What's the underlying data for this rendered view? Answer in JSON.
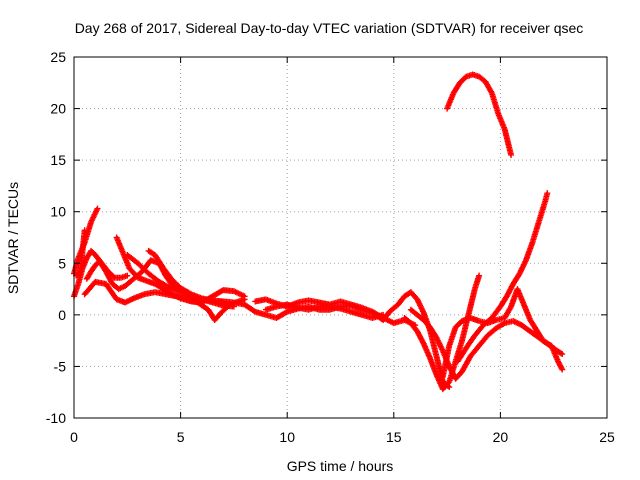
{
  "chart_data": {
    "type": "scatter",
    "title": "Day 268 of 2017, Sidereal Day-to-day VTEC variation (SDTVAR) for receiver qsec",
    "xlabel": "GPS time / hours",
    "ylabel": "SDTVAR / TECUs",
    "xlim": [
      0,
      25
    ],
    "ylim": [
      -10,
      25
    ],
    "xticks": [
      0,
      5,
      10,
      15,
      20,
      25
    ],
    "yticks": [
      -10,
      -5,
      0,
      5,
      10,
      15,
      20,
      25
    ],
    "grid": true,
    "legend": "none",
    "marker": "plus",
    "color": "#ff0000",
    "series": [
      {
        "values": [
          [
            0.0,
            1.8
          ],
          [
            0.2,
            3.0
          ],
          [
            0.4,
            4.5
          ],
          [
            0.6,
            5.5
          ],
          [
            0.8,
            6.2
          ],
          [
            1.0,
            5.8
          ],
          [
            1.3,
            5.0
          ],
          [
            1.6,
            4.2
          ],
          [
            1.9,
            3.6
          ],
          [
            2.2,
            3.6
          ],
          [
            2.5,
            3.8
          ]
        ]
      },
      {
        "values": [
          [
            0.0,
            4.0
          ],
          [
            0.2,
            5.5
          ],
          [
            0.5,
            7.0
          ],
          [
            0.8,
            9.0
          ],
          [
            1.1,
            10.3
          ]
        ]
      },
      {
        "values": [
          [
            0.1,
            3.8
          ],
          [
            0.3,
            4.2
          ],
          [
            0.5,
            8.2
          ]
        ]
      },
      {
        "values": [
          [
            0.6,
            3.5
          ],
          [
            0.8,
            4.2
          ],
          [
            1.0,
            4.8
          ],
          [
            1.2,
            5.2
          ],
          [
            1.5,
            4.2
          ],
          [
            1.8,
            3.0
          ],
          [
            2.1,
            2.5
          ],
          [
            2.4,
            2.8
          ],
          [
            2.8,
            3.5
          ],
          [
            3.2,
            4.2
          ],
          [
            3.6,
            5.3
          ],
          [
            4.0,
            5.0
          ],
          [
            4.3,
            3.8
          ],
          [
            4.6,
            2.9
          ],
          [
            5.0,
            2.3
          ],
          [
            5.5,
            1.8
          ],
          [
            6.0,
            1.5
          ],
          [
            6.5,
            1.3
          ],
          [
            7.0,
            1.2
          ]
        ]
      },
      {
        "values": [
          [
            0.5,
            2.0
          ],
          [
            1.0,
            3.2
          ],
          [
            1.5,
            3.0
          ],
          [
            2.0,
            1.5
          ],
          [
            2.4,
            1.2
          ],
          [
            2.8,
            1.6
          ],
          [
            3.3,
            2.0
          ],
          [
            3.8,
            2.2
          ],
          [
            4.3,
            2.0
          ],
          [
            4.8,
            1.8
          ],
          [
            5.3,
            1.5
          ],
          [
            5.8,
            1.2
          ],
          [
            6.3,
            0.5
          ],
          [
            6.6,
            -0.5
          ],
          [
            6.9,
            0.2
          ],
          [
            7.3,
            1.0
          ],
          [
            8.0,
            1.5
          ]
        ]
      },
      {
        "values": [
          [
            2.0,
            7.5
          ],
          [
            2.3,
            6.0
          ],
          [
            2.6,
            4.5
          ],
          [
            3.0,
            3.6
          ],
          [
            3.4,
            3.3
          ],
          [
            3.8,
            3.0
          ],
          [
            4.2,
            2.5
          ],
          [
            4.6,
            2.0
          ],
          [
            5.0,
            1.6
          ],
          [
            5.5,
            1.3
          ],
          [
            6.0,
            1.2
          ],
          [
            6.5,
            1.8
          ],
          [
            7.0,
            2.4
          ],
          [
            7.5,
            2.3
          ],
          [
            8.0,
            1.8
          ]
        ]
      },
      {
        "values": [
          [
            2.5,
            5.8
          ],
          [
            3.0,
            5.0
          ],
          [
            3.5,
            4.0
          ],
          [
            4.0,
            3.2
          ],
          [
            4.5,
            2.6
          ],
          [
            5.0,
            2.2
          ],
          [
            5.5,
            1.8
          ],
          [
            6.0,
            1.5
          ],
          [
            6.5,
            1.2
          ],
          [
            7.0,
            0.9
          ],
          [
            7.5,
            0.8
          ]
        ]
      },
      {
        "values": [
          [
            3.5,
            6.2
          ],
          [
            3.8,
            5.8
          ],
          [
            4.2,
            4.5
          ],
          [
            4.6,
            3.4
          ],
          [
            5.0,
            2.6
          ],
          [
            5.5,
            2.0
          ],
          [
            6.0,
            1.6
          ],
          [
            6.5,
            1.4
          ],
          [
            7.0,
            1.3
          ],
          [
            7.5,
            1.2
          ],
          [
            8.0,
            1.0
          ]
        ]
      },
      {
        "values": [
          [
            8.0,
            1.0
          ],
          [
            8.5,
            0.3
          ],
          [
            9.0,
            0.0
          ],
          [
            9.5,
            -0.3
          ],
          [
            10.0,
            0.3
          ],
          [
            10.5,
            0.6
          ],
          [
            11.0,
            0.8
          ],
          [
            11.5,
            0.5
          ],
          [
            12.0,
            0.5
          ],
          [
            12.5,
            0.8
          ],
          [
            13.0,
            0.9
          ],
          [
            13.5,
            0.5
          ],
          [
            14.0,
            0.2
          ],
          [
            14.5,
            -0.5
          ],
          [
            14.8,
            0.3
          ],
          [
            15.2,
            1.0
          ],
          [
            15.5,
            1.8
          ],
          [
            15.8,
            2.2
          ],
          [
            16.1,
            1.5
          ],
          [
            16.4,
            0.2
          ],
          [
            16.7,
            -1.5
          ],
          [
            17.0,
            -4.0
          ],
          [
            17.3,
            -6.5
          ],
          [
            17.6,
            -7.0
          ]
        ]
      },
      {
        "values": [
          [
            8.5,
            1.3
          ],
          [
            9.0,
            1.5
          ],
          [
            9.5,
            1.1
          ],
          [
            10.0,
            0.8
          ],
          [
            10.5,
            1.2
          ],
          [
            11.0,
            1.4
          ],
          [
            11.5,
            1.2
          ],
          [
            12.0,
            1.0
          ],
          [
            12.5,
            1.3
          ],
          [
            13.0,
            1.0
          ],
          [
            13.5,
            0.7
          ],
          [
            14.0,
            0.3
          ],
          [
            14.5,
            -0.3
          ],
          [
            15.0,
            -0.8
          ],
          [
            15.5,
            -0.5
          ],
          [
            16.0,
            -1.0
          ]
        ]
      },
      {
        "values": [
          [
            9.0,
            0.5
          ],
          [
            9.5,
            0.8
          ],
          [
            10.0,
            1.0
          ],
          [
            10.5,
            0.7
          ],
          [
            11.0,
            0.5
          ],
          [
            11.5,
            0.8
          ],
          [
            12.0,
            0.8
          ],
          [
            12.5,
            0.6
          ],
          [
            13.0,
            0.3
          ],
          [
            13.5,
            0.0
          ],
          [
            14.0,
            -0.3
          ],
          [
            14.5,
            0.0
          ]
        ]
      },
      {
        "values": [
          [
            15.5,
            -0.3
          ],
          [
            15.8,
            -0.8
          ],
          [
            16.1,
            -1.6
          ],
          [
            16.4,
            -2.8
          ],
          [
            16.7,
            -4.2
          ],
          [
            17.0,
            -5.8
          ],
          [
            17.3,
            -7.2
          ],
          [
            17.6,
            -6.5
          ],
          [
            17.9,
            -4.5
          ],
          [
            18.2,
            -2.5
          ],
          [
            18.5,
            0.0
          ],
          [
            18.8,
            2.5
          ],
          [
            19.0,
            3.8
          ]
        ]
      },
      {
        "values": [
          [
            15.8,
            0.5
          ],
          [
            16.1,
            0.0
          ],
          [
            16.4,
            -0.5
          ],
          [
            16.7,
            -1.2
          ],
          [
            17.0,
            -2.2
          ],
          [
            17.3,
            -3.5
          ],
          [
            17.6,
            -5.0
          ],
          [
            17.9,
            -6.2
          ],
          [
            18.2,
            -5.5
          ],
          [
            18.6,
            -4.0
          ],
          [
            19.0,
            -3.0
          ],
          [
            19.4,
            -2.0
          ],
          [
            19.8,
            -1.3
          ],
          [
            20.2,
            -0.8
          ],
          [
            20.6,
            -0.6
          ],
          [
            21.0,
            -1.0
          ],
          [
            21.4,
            -1.6
          ],
          [
            21.8,
            -2.2
          ],
          [
            22.2,
            -2.8
          ],
          [
            22.6,
            -3.4
          ],
          [
            22.9,
            -3.8
          ]
        ]
      },
      {
        "values": [
          [
            17.3,
            -6.0
          ],
          [
            17.6,
            -3.0
          ],
          [
            17.9,
            -1.2
          ],
          [
            18.2,
            -0.6
          ],
          [
            18.6,
            -0.3
          ],
          [
            19.0,
            -0.6
          ],
          [
            19.4,
            -0.8
          ],
          [
            19.8,
            -0.5
          ],
          [
            20.2,
            -0.3
          ],
          [
            20.5,
            0.8
          ],
          [
            20.8,
            2.5
          ],
          [
            21.0,
            1.5
          ],
          [
            21.2,
            0.5
          ],
          [
            21.4,
            -0.5
          ],
          [
            21.7,
            -1.5
          ],
          [
            22.0,
            -2.5
          ],
          [
            22.4,
            -3.0
          ],
          [
            22.7,
            -4.5
          ],
          [
            22.9,
            -5.3
          ]
        ]
      },
      {
        "values": [
          [
            18.0,
            -4.5
          ],
          [
            18.4,
            -3.2
          ],
          [
            18.8,
            -2.0
          ],
          [
            19.2,
            -1.0
          ],
          [
            19.6,
            -0.3
          ],
          [
            20.0,
            0.8
          ],
          [
            20.3,
            1.8
          ],
          [
            20.6,
            3.0
          ],
          [
            20.9,
            4.0
          ],
          [
            21.2,
            5.3
          ],
          [
            21.5,
            7.0
          ],
          [
            21.8,
            9.0
          ],
          [
            22.1,
            11.0
          ],
          [
            22.2,
            11.8
          ]
        ]
      },
      {
        "values": [
          [
            17.5,
            20.0
          ],
          [
            17.8,
            21.5
          ],
          [
            18.1,
            22.5
          ],
          [
            18.4,
            23.1
          ],
          [
            18.7,
            23.3
          ],
          [
            19.0,
            23.1
          ],
          [
            19.3,
            22.6
          ],
          [
            19.6,
            21.5
          ],
          [
            19.9,
            19.5
          ],
          [
            20.2,
            18.0
          ],
          [
            20.5,
            15.5
          ]
        ]
      }
    ]
  }
}
